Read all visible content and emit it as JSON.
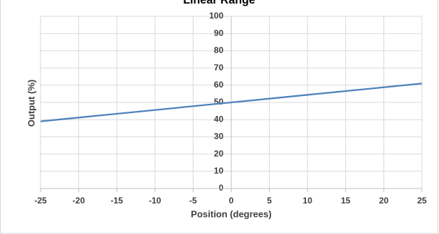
{
  "chart_data": {
    "type": "line",
    "title": "Linear Range",
    "x_label": "Position (degrees)",
    "y_label": "Output (%)",
    "x": [
      -25,
      25
    ],
    "series": [
      {
        "name": "Output",
        "color": "#4f81bd",
        "values": [
          39,
          61
        ]
      }
    ],
    "xlim": [
      -25,
      25
    ],
    "xticks": [
      -25,
      -20,
      -15,
      -10,
      -5,
      0,
      5,
      10,
      15,
      20,
      25
    ],
    "ylim": [
      0,
      100
    ],
    "yticks": [
      0,
      10,
      20,
      30,
      40,
      50,
      60,
      70,
      80,
      90,
      100
    ],
    "grid": true
  }
}
